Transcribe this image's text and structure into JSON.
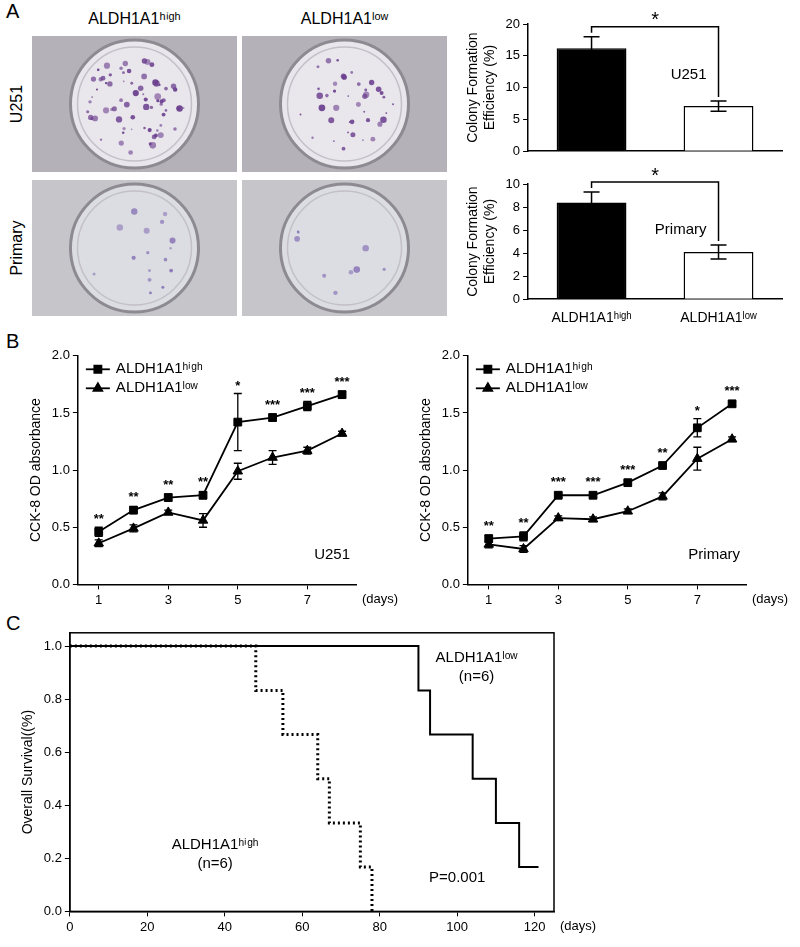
{
  "figure": {
    "panel_labels": [
      "A",
      "B",
      "C"
    ],
    "plate_columns": [
      "ALDH1A1ʰⁱᵍʰ",
      "ALDH1A1ˡᵒʷ"
    ],
    "plate_rows": [
      "U251",
      "Primary"
    ]
  },
  "chart_data": [
    {
      "type": "bar",
      "annotation": "U251",
      "y_label": "Colony Formation Efficiency (%)",
      "categories": [
        null,
        null
      ],
      "values": [
        16.2,
        7.1
      ],
      "errors": [
        1.8,
        0.8
      ],
      "colors": [
        "#000000",
        "#ffffff"
      ],
      "ylim": [
        0,
        20
      ],
      "yticks": [
        0,
        5,
        10,
        15,
        20
      ],
      "significance": "*",
      "tick_labels": "y"
    },
    {
      "type": "bar",
      "annotation": "Primary",
      "y_label": "Colony Formation Efficiency (%)",
      "categories": [
        "ALDH1A1ʰⁱᵍʰ",
        "ALDH1A1ˡᵒʷ"
      ],
      "values": [
        8.4,
        4.1
      ],
      "errors": [
        0.9,
        0.6
      ],
      "colors": [
        "#000000",
        "#ffffff"
      ],
      "ylim": [
        0,
        10
      ],
      "yticks": [
        0,
        2,
        4,
        6,
        8,
        10
      ],
      "significance": "*"
    },
    {
      "type": "line",
      "annotation": "U251",
      "y_label": "CCK-8 OD absorbance",
      "x_label": "(days)",
      "x": [
        1,
        2,
        3,
        4,
        5,
        6,
        7,
        8
      ],
      "series": [
        {
          "name": "ALDH1A1ʰⁱᵍʰ",
          "color": "#000000",
          "marker": "square",
          "values": [
            0.46,
            0.65,
            0.76,
            0.78,
            1.42,
            1.46,
            1.56,
            1.66
          ],
          "errors": [
            0.04,
            0.03,
            0.03,
            0.03,
            0.25,
            0.03,
            0.04,
            0.03
          ],
          "significance": [
            "**",
            "**",
            "**",
            "**",
            "*",
            "***",
            "***",
            "***"
          ]
        },
        {
          "name": "ALDH1A1ˡᵒʷ",
          "color": "#000000",
          "marker": "triangle",
          "values": [
            0.36,
            0.49,
            0.63,
            0.56,
            0.99,
            1.11,
            1.17,
            1.32
          ],
          "errors": [
            0.03,
            0.03,
            0.02,
            0.06,
            0.07,
            0.06,
            0.03,
            0.02
          ]
        }
      ],
      "xlim": [
        0.4,
        8.4
      ],
      "xticks": [
        1,
        3,
        5,
        7
      ],
      "ylim": [
        0,
        2
      ],
      "yticks": [
        {
          "value": 0,
          "label": "0.0"
        },
        {
          "value": 0.5,
          "label": "0.5"
        },
        {
          "value": 1,
          "label": "1.0"
        },
        {
          "value": 1.5,
          "label": "1.5"
        },
        {
          "value": 2,
          "label": "2.0"
        }
      ],
      "legend": "top-left"
    },
    {
      "type": "line",
      "annotation": "Primary",
      "y_label": "CCK-8 OD absorbance",
      "x_label": "(days)",
      "x": [
        1,
        2,
        3,
        4,
        5,
        6,
        7,
        8
      ],
      "series": [
        {
          "name": "ALDH1A1ʰⁱᵍʰ",
          "color": "#000000",
          "marker": "square",
          "values": [
            0.4,
            0.42,
            0.78,
            0.78,
            0.89,
            1.04,
            1.37,
            1.58
          ],
          "errors": [
            0.03,
            0.04,
            0.02,
            0.02,
            0.02,
            0.02,
            0.08,
            0.02
          ],
          "significance": [
            "**",
            "**",
            "***",
            "***",
            "***",
            "**",
            "*",
            "***"
          ]
        },
        {
          "name": "ALDH1A1ˡᵒʷ",
          "color": "#000000",
          "marker": "triangle",
          "values": [
            0.35,
            0.31,
            0.58,
            0.57,
            0.64,
            0.77,
            1.1,
            1.27
          ],
          "errors": [
            0.03,
            0.03,
            0.02,
            0.02,
            0.02,
            0.03,
            0.1,
            0.02
          ]
        }
      ],
      "xlim": [
        0.4,
        8.4
      ],
      "xticks": [
        1,
        3,
        5,
        7
      ],
      "ylim": [
        0,
        2
      ],
      "yticks": [
        {
          "value": 0,
          "label": "0.0"
        },
        {
          "value": 0.5,
          "label": "0.5"
        },
        {
          "value": 1,
          "label": "1.0"
        },
        {
          "value": 1.5,
          "label": "1.5"
        },
        {
          "value": 2,
          "label": "2.0"
        }
      ],
      "legend": "top-left"
    },
    {
      "type": "step",
      "annotation": "P=0.001",
      "y_label": "Overall Survival((%)",
      "x_label": "(days)",
      "series": [
        {
          "name": "ALDH1A1ˡᵒʷ",
          "note": "(n=6)",
          "color": "#000000",
          "line_style": "solid",
          "x": [
            0,
            90,
            93,
            104,
            110,
            116,
            121
          ],
          "values": [
            1,
            0.833,
            0.667,
            0.5,
            0.333,
            0.167,
            0.167
          ]
        },
        {
          "name": "ALDH1A1ʰⁱᵍʰ",
          "note": "(n=6)",
          "color": "#000000",
          "line_style": "dotted",
          "x": [
            0,
            48,
            55,
            64,
            67,
            75,
            78
          ],
          "values": [
            1,
            0.833,
            0.667,
            0.5,
            0.333,
            0.167,
            0
          ]
        }
      ],
      "xlim": [
        0,
        125
      ],
      "xticks": [
        0,
        20,
        40,
        60,
        80,
        100,
        120
      ],
      "ylim": [
        0,
        1.05
      ],
      "yticks": [
        {
          "value": 0,
          "label": "0.0"
        },
        {
          "value": 0.2,
          "label": "0.2"
        },
        {
          "value": 0.4,
          "label": "0.4"
        },
        {
          "value": 0.6,
          "label": "0.6"
        },
        {
          "value": 0.8,
          "label": "0.8"
        },
        {
          "value": 1,
          "label": "1.0"
        }
      ]
    }
  ]
}
